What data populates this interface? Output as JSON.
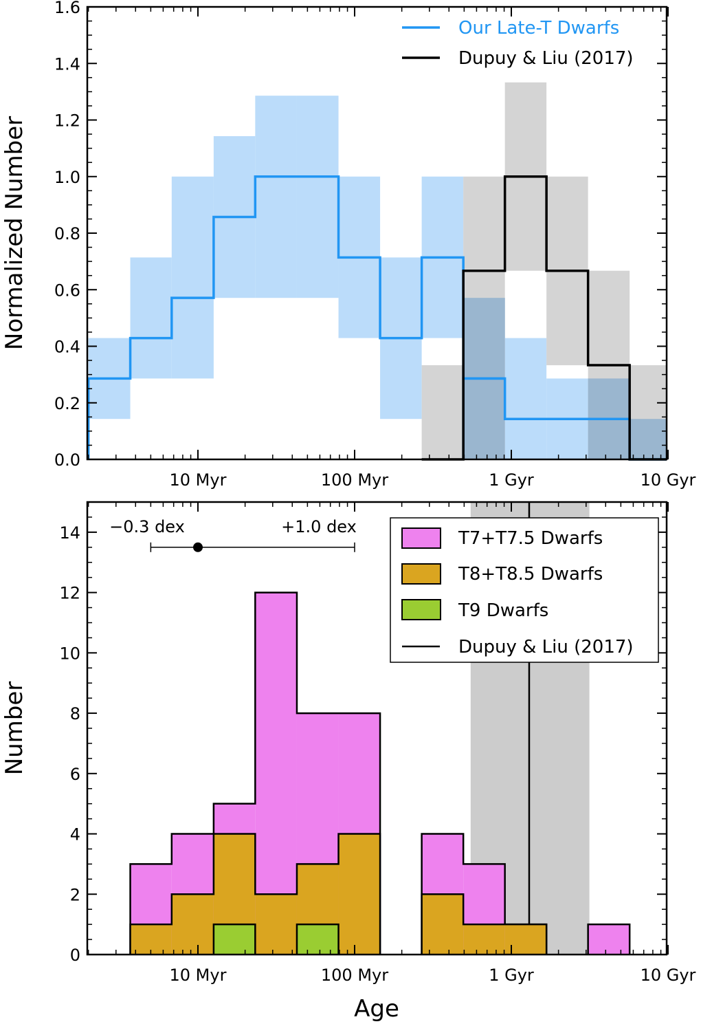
{
  "chart_data": [
    {
      "type": "step",
      "panel": "top",
      "xscale": "log",
      "xlabel": "",
      "ylabel": "Normalized Number",
      "ylim": [
        0,
        1.6
      ],
      "yticks": [
        {
          "value": 0.0,
          "label": "0.0"
        },
        {
          "value": 0.2,
          "label": "0.2"
        },
        {
          "value": 0.4,
          "label": "0.4"
        },
        {
          "value": 0.6,
          "label": "0.6"
        },
        {
          "value": 0.8,
          "label": "0.8"
        },
        {
          "value": 1.0,
          "label": "1.0"
        },
        {
          "value": 1.2,
          "label": "1.2"
        },
        {
          "value": 1.4,
          "label": "1.4"
        },
        {
          "value": 1.6,
          "label": "1.6"
        }
      ],
      "xticks": [
        {
          "value": 10,
          "label": "10 Myr"
        },
        {
          "value": 100,
          "label": "100 Myr"
        },
        {
          "value": 1000,
          "label": "1 Gyr"
        },
        {
          "value": 10000,
          "label": "10 Gyr"
        }
      ],
      "legend": "top-right",
      "series": [
        {
          "name": "Our Late-T Dwarfs",
          "color": "#2196f3",
          "band_color": "#bbdcfa",
          "edges": [
            2,
            3.7,
            6.8,
            12.6,
            23.2,
            42.8,
            78.9,
            145.4,
            268,
            494,
            910
          ],
          "values": [
            0.286,
            0.429,
            0.571,
            0.857,
            1.0,
            1.0,
            0.714,
            0.429,
            0.714,
            0.286
          ],
          "band_low": [
            0.143,
            0.286,
            0.286,
            0.571,
            0.571,
            0.571,
            0.429,
            0.143,
            0.429,
            0.0
          ],
          "band_high": [
            0.429,
            0.714,
            1.0,
            1.143,
            1.286,
            1.286,
            1.0,
            0.714,
            1.0,
            0.571
          ]
        },
        {
          "name": "",
          "color": "#2196f3",
          "band_color": "#bbdcfa",
          "edges": [
            494,
            910,
            1676,
            3088,
            5690,
            10480
          ],
          "values": [
            0.286,
            0.143,
            0.143,
            0.143,
            0.0
          ],
          "band_low": [
            0.0,
            0.0,
            0.0,
            0.0,
            0.0
          ],
          "band_high": [
            0.571,
            0.429,
            0.286,
            0.286,
            0.143
          ]
        },
        {
          "name": "Dupuy & Liu (2017)",
          "color": "#000000",
          "band_color": "#cccccc",
          "edges": [
            268,
            494,
            910,
            1676,
            3088,
            5690,
            10480
          ],
          "values": [
            0.0,
            0.667,
            1.0,
            0.667,
            0.333,
            0.0
          ],
          "band_low": [
            0.0,
            0.0,
            0.667,
            0.333,
            0.0,
            0.0
          ],
          "band_high": [
            0.333,
            1.0,
            1.333,
            1.0,
            0.667,
            0.333
          ]
        }
      ]
    },
    {
      "type": "stacked-bar",
      "panel": "bottom",
      "xscale": "log",
      "xlabel": "Age",
      "ylabel": "Number",
      "ylim": [
        0,
        15
      ],
      "yticks": [
        {
          "value": 0,
          "label": "0"
        },
        {
          "value": 2,
          "label": "2"
        },
        {
          "value": 4,
          "label": "4"
        },
        {
          "value": 6,
          "label": "6"
        },
        {
          "value": 8,
          "label": "8"
        },
        {
          "value": 10,
          "label": "10"
        },
        {
          "value": 12,
          "label": "12"
        },
        {
          "value": 14,
          "label": "14"
        }
      ],
      "xticks": [
        {
          "value": 10,
          "label": "10 Myr"
        },
        {
          "value": 100,
          "label": "100 Myr"
        },
        {
          "value": 1000,
          "label": "1 Gyr"
        },
        {
          "value": 10000,
          "label": "10 Gyr"
        }
      ],
      "legend": "top-right",
      "bin_edges": [
        3.7,
        6.8,
        12.6,
        23.2,
        42.8,
        78.9,
        145.4,
        268,
        494,
        910,
        1676,
        3088,
        5690
      ],
      "series": [
        {
          "name": "T7+T7.5 Dwarfs",
          "color": "#ee82ee",
          "totals": [
            3,
            4,
            5,
            12,
            8,
            8,
            0,
            4,
            3,
            1,
            0,
            1
          ]
        },
        {
          "name": "T8+T8.5 Dwarfs",
          "color": "#daa520",
          "totals": [
            1,
            2,
            4,
            2,
            3,
            4,
            0,
            2,
            1,
            1,
            0,
            0
          ]
        },
        {
          "name": "T9 Dwarfs",
          "color": "#9acd32",
          "totals": [
            0,
            0,
            1,
            0,
            1,
            0,
            0,
            0,
            0,
            0,
            0,
            0
          ]
        }
      ],
      "reference": {
        "name": "Dupuy & Liu (2017)",
        "median": 1300,
        "range": [
          550,
          3150
        ],
        "band_color": "#cccccc",
        "line_color": "#000000"
      },
      "errorbar": {
        "center": 10,
        "low": 5.0,
        "high": 100,
        "y": 13.5,
        "label_low": "−0.3 dex",
        "label_high": "+1.0 dex"
      }
    }
  ]
}
